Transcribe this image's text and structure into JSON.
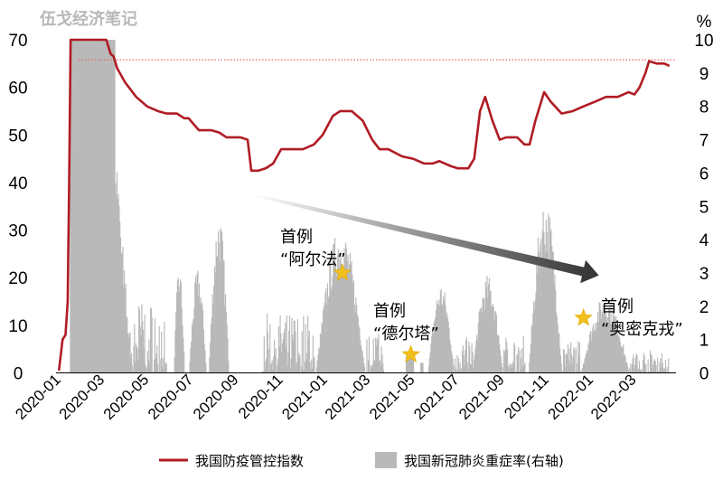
{
  "watermark": "伍戈经济笔记",
  "chart_data": {
    "type": "line+bar",
    "left_axis": {
      "ticks": [
        "0",
        "10",
        "20",
        "30",
        "40",
        "50",
        "60",
        "70"
      ],
      "ylim": [
        0,
        70
      ]
    },
    "right_axis": {
      "unit": "%",
      "ticks": [
        "0",
        "1",
        "2",
        "3",
        "4",
        "5",
        "6",
        "7",
        "8",
        "9",
        "10"
      ],
      "ylim": [
        0,
        10
      ]
    },
    "x_ticks": [
      "2020-01",
      "2020-03",
      "2020-05",
      "2020-07",
      "2020-09",
      "2020-11",
      "2021-01",
      "2021-03",
      "2021-05",
      "2021-07",
      "2021-09",
      "2021-11",
      "2022-01",
      "2022-03"
    ],
    "x_range": [
      "2020-01-01",
      "2022-05-01"
    ],
    "reference_line": {
      "value": 9.4,
      "axis": "right",
      "color": "#e06b6b",
      "style": "dotted"
    },
    "series": [
      {
        "name": "我国防疫管控指数",
        "type": "line",
        "axis": "left",
        "color": "#b01c24",
        "points": [
          [
            "2020-01-05",
            0.5
          ],
          [
            "2020-01-10",
            7
          ],
          [
            "2020-01-14",
            8
          ],
          [
            "2020-01-17",
            15
          ],
          [
            "2020-01-19",
            40
          ],
          [
            "2020-01-21",
            70
          ],
          [
            "2020-01-24",
            70
          ],
          [
            "2020-02-01",
            70
          ],
          [
            "2020-03-01",
            70
          ],
          [
            "2020-03-10",
            70
          ],
          [
            "2020-03-16",
            67
          ],
          [
            "2020-03-20",
            66.5
          ],
          [
            "2020-03-25",
            64
          ],
          [
            "2020-04-05",
            61
          ],
          [
            "2020-04-20",
            58
          ],
          [
            "2020-05-05",
            56
          ],
          [
            "2020-05-20",
            55
          ],
          [
            "2020-06-01",
            54.5
          ],
          [
            "2020-06-15",
            54.5
          ],
          [
            "2020-06-25",
            53.5
          ],
          [
            "2020-07-01",
            53.5
          ],
          [
            "2020-07-15",
            51
          ],
          [
            "2020-08-01",
            51
          ],
          [
            "2020-08-12",
            50.5
          ],
          [
            "2020-08-22",
            49.5
          ],
          [
            "2020-09-01",
            49.5
          ],
          [
            "2020-09-10",
            49.5
          ],
          [
            "2020-09-20",
            49
          ],
          [
            "2020-09-25",
            42.5
          ],
          [
            "2020-10-05",
            42.5
          ],
          [
            "2020-10-15",
            43
          ],
          [
            "2020-10-25",
            44
          ],
          [
            "2020-11-05",
            47
          ],
          [
            "2020-11-20",
            47
          ],
          [
            "2020-12-05",
            47
          ],
          [
            "2020-12-20",
            48
          ],
          [
            "2021-01-01",
            50
          ],
          [
            "2021-01-15",
            54
          ],
          [
            "2021-01-25",
            55
          ],
          [
            "2021-02-10",
            55
          ],
          [
            "2021-02-25",
            53
          ],
          [
            "2021-03-10",
            49
          ],
          [
            "2021-03-20",
            47
          ],
          [
            "2021-04-01",
            47
          ],
          [
            "2021-04-20",
            45.5
          ],
          [
            "2021-05-05",
            45
          ],
          [
            "2021-05-20",
            44
          ],
          [
            "2021-06-01",
            44
          ],
          [
            "2021-06-10",
            44.5
          ],
          [
            "2021-06-25",
            43.5
          ],
          [
            "2021-07-05",
            43
          ],
          [
            "2021-07-20",
            43
          ],
          [
            "2021-07-28",
            45
          ],
          [
            "2021-08-05",
            55
          ],
          [
            "2021-08-12",
            58
          ],
          [
            "2021-08-22",
            53
          ],
          [
            "2021-09-01",
            49
          ],
          [
            "2021-09-10",
            49.5
          ],
          [
            "2021-09-25",
            49.5
          ],
          [
            "2021-10-05",
            48
          ],
          [
            "2021-10-12",
            48
          ],
          [
            "2021-10-20",
            53
          ],
          [
            "2021-11-01",
            59
          ],
          [
            "2021-11-10",
            57
          ],
          [
            "2021-11-25",
            54.5
          ],
          [
            "2021-12-10",
            55
          ],
          [
            "2021-12-25",
            56
          ],
          [
            "2022-01-10",
            57
          ],
          [
            "2022-01-25",
            58
          ],
          [
            "2022-02-10",
            58
          ],
          [
            "2022-02-25",
            59
          ],
          [
            "2022-03-05",
            58.5
          ],
          [
            "2022-03-12",
            60
          ],
          [
            "2022-03-20",
            63
          ],
          [
            "2022-03-25",
            65.5
          ],
          [
            "2022-04-05",
            65
          ],
          [
            "2022-04-15",
            65
          ],
          [
            "2022-04-22",
            64.5
          ]
        ]
      },
      {
        "name": "我国新冠肺炎重症率(右轴)",
        "type": "bar",
        "axis": "right",
        "color": "#b9b9b9",
        "segments": [
          {
            "start": "2020-01-20",
            "end": "2020-03-21",
            "peak": 10,
            "mode": "flat"
          },
          {
            "start": "2020-03-22",
            "end": "2020-04-15",
            "peak": 6.2,
            "mode": "decay"
          },
          {
            "start": "2020-04-16",
            "end": "2020-05-31",
            "peak": 2.2,
            "mode": "noise"
          },
          {
            "start": "2020-06-10",
            "end": "2020-06-25",
            "peak": 3.1,
            "mode": "peak"
          },
          {
            "start": "2020-07-01",
            "end": "2020-07-25",
            "peak": 3.0,
            "mode": "peak"
          },
          {
            "start": "2020-07-28",
            "end": "2020-08-25",
            "peak": 4.6,
            "mode": "peak"
          },
          {
            "start": "2020-10-10",
            "end": "2020-12-20",
            "peak": 1.8,
            "mode": "noise"
          },
          {
            "start": "2020-12-22",
            "end": "2021-02-28",
            "peak": 4.2,
            "mode": "peak"
          },
          {
            "start": "2021-03-01",
            "end": "2021-03-25",
            "peak": 1.2,
            "mode": "noise"
          },
          {
            "start": "2021-04-25",
            "end": "2021-05-05",
            "peak": 0.5,
            "mode": "flat"
          },
          {
            "start": "2021-05-15",
            "end": "2021-05-18",
            "peak": 0.3,
            "mode": "flat"
          },
          {
            "start": "2021-05-25",
            "end": "2021-06-30",
            "peak": 2.6,
            "mode": "peak"
          },
          {
            "start": "2021-07-01",
            "end": "2021-07-25",
            "peak": 1.1,
            "mode": "noise"
          },
          {
            "start": "2021-07-25",
            "end": "2021-09-05",
            "peak": 2.8,
            "mode": "peak"
          },
          {
            "start": "2021-09-06",
            "end": "2021-10-05",
            "peak": 1.1,
            "mode": "noise"
          },
          {
            "start": "2021-10-10",
            "end": "2021-11-25",
            "peak": 5.0,
            "mode": "peak"
          },
          {
            "start": "2021-11-26",
            "end": "2021-12-20",
            "peak": 1.0,
            "mode": "noise"
          },
          {
            "start": "2021-12-21",
            "end": "2022-02-25",
            "peak": 2.2,
            "mode": "peak"
          },
          {
            "start": "2022-02-26",
            "end": "2022-04-20",
            "peak": 0.7,
            "mode": "noise"
          }
        ]
      }
    ],
    "annotations": [
      {
        "lines": [
          "首例",
          "“阿尔法”"
        ],
        "star_date": "2021-01-28",
        "star_value": 3.0
      },
      {
        "lines": [
          "首例",
          "“德尔塔”"
        ],
        "star_date": "2021-05-02",
        "star_value": 0.55
      },
      {
        "lines": [
          "首例",
          "“奥密克戎”"
        ],
        "star_date": "2021-12-25",
        "star_value": 1.65
      }
    ],
    "trend_arrow": {
      "from": [
        "2020-09-25",
        37.5
      ],
      "to": [
        "2022-01-15",
        20.5
      ]
    },
    "legend_position": "bottom"
  }
}
